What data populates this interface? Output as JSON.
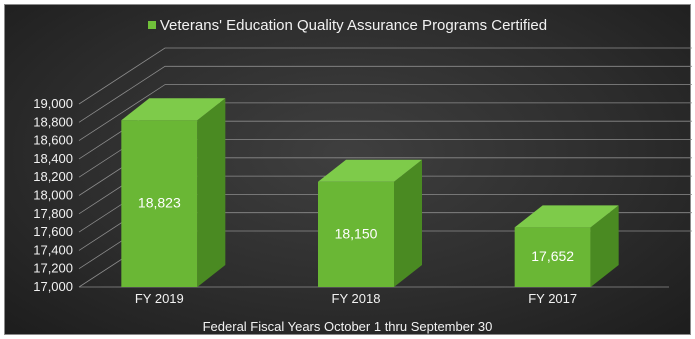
{
  "chart_data": {
    "type": "bar",
    "categories": [
      "FY 2019",
      "FY 2018",
      "FY 2017"
    ],
    "series": [
      {
        "name": "Veterans' Education Quality Assurance Programs Certified",
        "values": [
          18823,
          18150,
          17652
        ],
        "color": "#70c03a"
      }
    ],
    "data_labels": [
      "18,823",
      "18,150",
      "17,652"
    ],
    "ylim": [
      17000,
      19000
    ],
    "yticks": [
      17000,
      17200,
      17400,
      17600,
      17800,
      18000,
      18200,
      18400,
      18600,
      18800,
      19000
    ],
    "ytick_labels": [
      "17,000",
      "17,200",
      "17,400",
      "17,600",
      "17,800",
      "18,000",
      "18,200",
      "18,400",
      "18,600",
      "18,800",
      "19,000"
    ],
    "xlabel": "Federal Fiscal Years October 1 thru September 30",
    "ylabel": "",
    "grid": true,
    "legend_position": "top-center",
    "style": "3d-column",
    "background_color": "#2e2e2e"
  }
}
